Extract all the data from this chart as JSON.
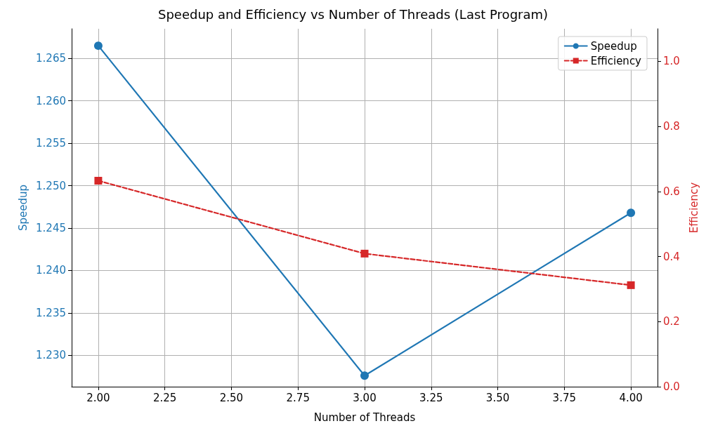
{
  "chart_data": {
    "type": "line",
    "title": "Speedup and Efficiency vs Number of Threads (Last Program)",
    "xlabel": "Number of Threads",
    "ylabel": "Speedup",
    "y2label": "Efficiency",
    "x": [
      2,
      3,
      4
    ],
    "series": [
      {
        "name": "Speedup",
        "color": "#1f77b4",
        "values": [
          1.2665,
          1.2276,
          1.2468
        ],
        "marker": "circle",
        "line_style": "solid"
      },
      {
        "name": "Efficiency",
        "color": "#d62728",
        "values": [
          0.633,
          0.409,
          0.312
        ],
        "axis": "y2",
        "marker": "square",
        "line_style": "dashed"
      }
    ],
    "xlim": [
      1.9,
      4.1
    ],
    "xticks": [
      {
        "value": 2,
        "label": "2.00"
      },
      {
        "value": 2.25,
        "label": "2.25"
      },
      {
        "value": 2.5,
        "label": "2.50"
      },
      {
        "value": 2.75,
        "label": "2.75"
      },
      {
        "value": 3,
        "label": "3.00"
      },
      {
        "value": 3.25,
        "label": "3.25"
      },
      {
        "value": 3.5,
        "label": "3.50"
      },
      {
        "value": 3.75,
        "label": "3.75"
      },
      {
        "value": 4,
        "label": "4.00"
      }
    ],
    "ylim": [
      1.2263,
      1.2685
    ],
    "yticks": [
      {
        "value": 1.23,
        "label": "1.230"
      },
      {
        "value": 1.235,
        "label": "1.235"
      },
      {
        "value": 1.24,
        "label": "1.240"
      },
      {
        "value": 1.245,
        "label": "1.245"
      },
      {
        "value": 1.25,
        "label": "1.250"
      },
      {
        "value": 1.255,
        "label": "1.255"
      },
      {
        "value": 1.26,
        "label": "1.260"
      },
      {
        "value": 1.265,
        "label": "1.265"
      }
    ],
    "y2lim": [
      0,
      1.1
    ],
    "y2ticks": [
      {
        "value": 0,
        "label": "0.0"
      },
      {
        "value": 0.2,
        "label": "0.2"
      },
      {
        "value": 0.4,
        "label": "0.4"
      },
      {
        "value": 0.6,
        "label": "0.6"
      },
      {
        "value": 0.8,
        "label": "0.8"
      },
      {
        "value": 1,
        "label": "1.0"
      }
    ],
    "grid": true,
    "legend": "top right"
  }
}
